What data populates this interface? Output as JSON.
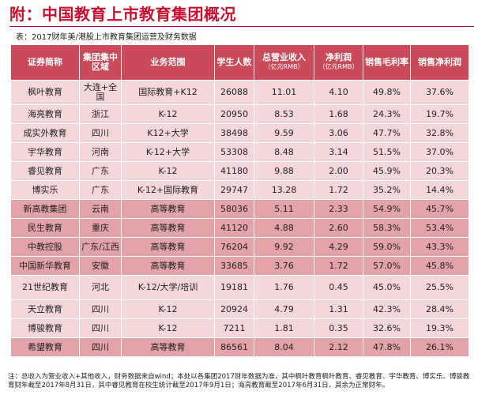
{
  "page": {
    "title": "附：中国教育上市教育集团概况",
    "subtitle": "表：2017财年美/港股上市教育集团运营及财务数据",
    "note": "注：总收入为营业收入+其他收入，财务数据来自wind；本处以各集团2017财年数据为准，其中枫叶教育枫叶教育、睿见教育、宇华教育、博实乐、博骏教育财年截至2017年8月31日，其中睿见教育在校生统计截至2017年9月1日；海亮教育截至2017年6月31日，其余为正常财年。"
  },
  "table": {
    "headers": {
      "name": "证券简称",
      "region": "集团集中区域",
      "scope": "业务范围",
      "students": "学生人数",
      "revenue": "总营业收入",
      "revenue_unit": "（亿元RMB）",
      "profit": "净利润",
      "profit_unit": "（亿元RMB）",
      "gross": "销售毛利率",
      "net_margin": "销售净利润"
    },
    "rows": [
      {
        "name": "枫叶教育",
        "region": "大连+全国",
        "scope": "国际教育+K12",
        "students": "26088",
        "revenue": "11.01",
        "profit": "4.10",
        "gross": "49.8%",
        "net_margin": "37.6%"
      },
      {
        "name": "海亮教育",
        "region": "浙江",
        "scope": "K-12",
        "students": "20950",
        "revenue": "8.53",
        "profit": "1.68",
        "gross": "24.3%",
        "net_margin": "19.7%"
      },
      {
        "name": "成实外教育",
        "region": "四川",
        "scope": "K12+大学",
        "students": "38498",
        "revenue": "9.59",
        "profit": "3.06",
        "gross": "47.7%",
        "net_margin": "32.8%"
      },
      {
        "name": "宇华教育",
        "region": "河南",
        "scope": "K-12+大学",
        "students": "53308",
        "revenue": "8.48",
        "profit": "3.14",
        "gross": "51.5%",
        "net_margin": "37.0%"
      },
      {
        "name": "睿见教育",
        "region": "广东",
        "scope": "K-12",
        "students": "41180",
        "revenue": "9.88",
        "profit": "2.00",
        "gross": "45.9%",
        "net_margin": "20.3%"
      },
      {
        "name": "博实乐",
        "region": "广东",
        "scope": "K-12+国际教育",
        "students": "29747",
        "revenue": "13.28",
        "profit": "1.72",
        "gross": "35.2%",
        "net_margin": "14.4%"
      },
      {
        "name": "新高教集团",
        "region": "云南",
        "scope": "高等教育",
        "students": "58036",
        "revenue": "5.11",
        "profit": "2.33",
        "gross": "54.9%",
        "net_margin": "45.7%"
      },
      {
        "name": "民生教育",
        "region": "重庆",
        "scope": "高等教育",
        "students": "41120",
        "revenue": "4.88",
        "profit": "2.60",
        "gross": "58.3%",
        "net_margin": "53.4%"
      },
      {
        "name": "中教控股",
        "region": "广东/江西",
        "scope": "高等教育",
        "students": "76204",
        "revenue": "9.92",
        "profit": "4.29",
        "gross": "59.0%",
        "net_margin": "43.3%"
      },
      {
        "name": "中国新华教育",
        "region": "安徽",
        "scope": "高等教育",
        "students": "33685",
        "revenue": "3.76",
        "profit": "1.72",
        "gross": "57.0%",
        "net_margin": "45.8%"
      },
      {
        "name": "21世纪教育",
        "region": "河北",
        "scope": "K-12/大学/培训",
        "students": "19181",
        "revenue": "1.76",
        "profit": "0.45",
        "gross": "45.0%",
        "net_margin": "25.5%"
      },
      {
        "name": "天立教育",
        "region": "四川",
        "scope": "K-12",
        "students": "20924",
        "revenue": "4.79",
        "profit": "1.31",
        "gross": "42.3%",
        "net_margin": "28.4%"
      },
      {
        "name": "博骏教育",
        "region": "四川",
        "scope": "K-12",
        "students": "7211",
        "revenue": "1.81",
        "profit": "0.35",
        "gross": "32.6%",
        "net_margin": "19.3%"
      },
      {
        "name": "希望教育",
        "region": "四川",
        "scope": "高等教育",
        "students": "86561",
        "revenue": "8.04",
        "profit": "2.12",
        "gross": "47.8%",
        "net_margin": "26.1%"
      }
    ]
  }
}
